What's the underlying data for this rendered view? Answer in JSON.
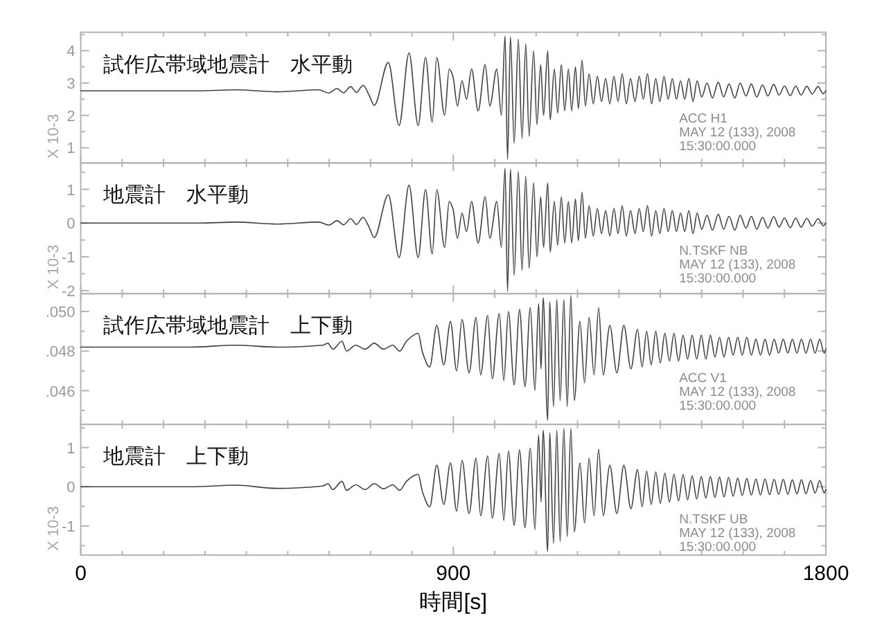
{
  "chart_data": [
    {
      "type": "line",
      "title": "試作広帯域地震計　水平動",
      "ylabel": "X 10-3",
      "annotations": [
        "ACC H1",
        "MAY 12 (133), 2008",
        "15:30:00.000"
      ],
      "color": "#404040",
      "xlim": [
        0,
        1800
      ],
      "xticks": [
        0,
        {
          "value": 100,
          "label": null
        },
        {
          "value": 200,
          "label": null
        },
        {
          "value": 300,
          "label": null
        },
        {
          "value": 400,
          "label": null
        },
        {
          "value": 500,
          "label": null
        },
        {
          "value": 600,
          "label": null
        },
        {
          "value": 700,
          "label": null
        },
        {
          "value": 800,
          "label": null
        },
        900,
        {
          "value": 1000,
          "label": null
        },
        {
          "value": 1100,
          "label": null
        },
        {
          "value": 1200,
          "label": null
        },
        {
          "value": 1300,
          "label": null
        },
        {
          "value": 1400,
          "label": null
        },
        {
          "value": 1500,
          "label": null
        },
        {
          "value": 1600,
          "label": null
        },
        {
          "value": 1700,
          "label": null
        },
        1800
      ],
      "ylim": [
        0.53,
        4.57
      ],
      "yticks": [
        1,
        {
          "value": 1.5,
          "label": null
        },
        2,
        {
          "value": 2.5,
          "label": null
        },
        3,
        {
          "value": 3.5,
          "label": null
        },
        4,
        {
          "value": 4.5,
          "label": null
        }
      ],
      "tick_labels": "y",
      "x": [
        0,
        284,
        374,
        475,
        575,
        599,
        619,
        635,
        652,
        666,
        682,
        696,
        709,
        743,
        769,
        793,
        815,
        833,
        849,
        860,
        879,
        890,
        899,
        910,
        921,
        932,
        944,
        960,
        977,
        988,
        1005,
        1016,
        1025,
        1031,
        1038,
        1047,
        1057,
        1066,
        1075,
        1083,
        1094,
        1102,
        1111,
        1118,
        1128,
        1134,
        1144,
        1152,
        1161,
        1169,
        1178,
        1186,
        1195,
        1202,
        1211,
        1219,
        1228,
        1238,
        1248,
        1258,
        1268,
        1278,
        1288,
        1298,
        1308,
        1318,
        1328,
        1339,
        1349,
        1359,
        1369,
        1379,
        1389,
        1399,
        1409,
        1419,
        1429,
        1439,
        1449,
        1459,
        1469,
        1479,
        1489,
        1500,
        1513,
        1526,
        1540,
        1553,
        1566,
        1580,
        1593,
        1607,
        1620,
        1633,
        1647,
        1660,
        1674,
        1687,
        1700,
        1714,
        1727,
        1740,
        1754,
        1767,
        1781,
        1794,
        1800
      ],
      "values": [
        2.76,
        2.76,
        2.79,
        2.73,
        2.79,
        2.69,
        2.83,
        2.7,
        2.89,
        2.71,
        2.93,
        2.64,
        2.31,
        3.64,
        1.69,
        3.93,
        1.69,
        3.79,
        1.79,
        3.79,
        2.0,
        3.43,
        3.21,
        2.29,
        3.07,
        2.5,
        3.43,
        2.14,
        3.57,
        2.29,
        3.43,
        2.0,
        4.46,
        0.64,
        4.43,
        1.14,
        4.36,
        1.29,
        4.21,
        1.36,
        4.0,
        1.71,
        3.57,
        2.0,
        4.0,
        1.86,
        3.43,
        2.07,
        3.57,
        2.14,
        3.43,
        2.14,
        3.5,
        2.21,
        3.71,
        2.29,
        3.29,
        2.36,
        3.21,
        2.43,
        3.14,
        2.36,
        3.21,
        2.43,
        3.29,
        2.36,
        3.14,
        2.43,
        3.21,
        2.5,
        3.29,
        2.36,
        3.14,
        2.43,
        3.21,
        2.5,
        3.14,
        2.5,
        3.07,
        2.5,
        3.14,
        2.43,
        3.07,
        2.57,
        3.0,
        2.54,
        3.03,
        2.57,
        2.97,
        2.54,
        3.0,
        2.6,
        2.97,
        2.57,
        2.94,
        2.6,
        2.96,
        2.63,
        2.91,
        2.61,
        2.91,
        2.63,
        2.9,
        2.66,
        2.89,
        2.67,
        2.76
      ]
    },
    {
      "type": "line",
      "title": "地震計　水平動",
      "ylabel": "X 10-3",
      "annotations": [
        "N.TSKF NB",
        "MAY 12 (133), 2008",
        "15:30:00.000"
      ],
      "color": "#404040",
      "xlim": [
        0,
        1800
      ],
      "xticks": [
        0,
        {
          "value": 100,
          "label": null
        },
        {
          "value": 200,
          "label": null
        },
        {
          "value": 300,
          "label": null
        },
        {
          "value": 400,
          "label": null
        },
        {
          "value": 500,
          "label": null
        },
        {
          "value": 600,
          "label": null
        },
        {
          "value": 700,
          "label": null
        },
        {
          "value": 800,
          "label": null
        },
        900,
        {
          "value": 1000,
          "label": null
        },
        {
          "value": 1100,
          "label": null
        },
        {
          "value": 1200,
          "label": null
        },
        {
          "value": 1300,
          "label": null
        },
        {
          "value": 1400,
          "label": null
        },
        {
          "value": 1500,
          "label": null
        },
        {
          "value": 1600,
          "label": null
        },
        {
          "value": 1700,
          "label": null
        },
        1800
      ],
      "ylim": [
        -2.09,
        1.78
      ],
      "yticks": [
        -2,
        {
          "value": -1.5,
          "label": null
        },
        -1,
        {
          "value": -0.5,
          "label": null
        },
        0,
        {
          "value": 0.5,
          "label": null
        },
        1,
        {
          "value": 1.5,
          "label": null
        }
      ],
      "tick_labels": "y",
      "x": [
        0,
        284,
        374,
        475,
        575,
        599,
        619,
        635,
        652,
        666,
        682,
        696,
        709,
        743,
        769,
        793,
        815,
        833,
        849,
        860,
        879,
        890,
        899,
        910,
        921,
        932,
        944,
        960,
        977,
        988,
        1005,
        1016,
        1025,
        1031,
        1038,
        1047,
        1057,
        1066,
        1075,
        1083,
        1094,
        1102,
        1111,
        1118,
        1128,
        1134,
        1144,
        1152,
        1161,
        1169,
        1178,
        1186,
        1195,
        1202,
        1211,
        1219,
        1228,
        1238,
        1248,
        1258,
        1268,
        1278,
        1288,
        1298,
        1308,
        1318,
        1328,
        1339,
        1349,
        1359,
        1369,
        1379,
        1389,
        1399,
        1409,
        1419,
        1429,
        1439,
        1449,
        1459,
        1469,
        1479,
        1489,
        1500,
        1513,
        1526,
        1540,
        1553,
        1566,
        1580,
        1593,
        1607,
        1620,
        1633,
        1647,
        1660,
        1674,
        1687,
        1700,
        1714,
        1727,
        1740,
        1754,
        1767,
        1781,
        1794,
        1800
      ],
      "values": [
        0.0,
        0.0,
        0.03,
        -0.03,
        0.03,
        -0.06,
        0.07,
        -0.05,
        0.13,
        -0.04,
        0.17,
        -0.11,
        -0.43,
        0.84,
        -1.02,
        1.12,
        -1.02,
        0.99,
        -0.92,
        0.99,
        -0.72,
        0.64,
        0.43,
        -0.45,
        0.3,
        -0.25,
        0.64,
        -0.59,
        0.78,
        -0.45,
        0.64,
        -0.72,
        1.63,
        -2.02,
        1.6,
        -1.55,
        1.53,
        -1.4,
        1.39,
        -1.34,
        1.19,
        -1.0,
        0.78,
        -0.72,
        1.19,
        -0.86,
        0.64,
        -0.66,
        0.78,
        -0.59,
        0.64,
        -0.59,
        0.71,
        -0.52,
        0.91,
        -0.45,
        0.51,
        -0.38,
        0.43,
        -0.31,
        0.37,
        -0.38,
        0.43,
        -0.31,
        0.51,
        -0.38,
        0.37,
        -0.31,
        0.43,
        -0.25,
        0.51,
        -0.38,
        0.37,
        -0.31,
        0.43,
        -0.25,
        0.37,
        -0.25,
        0.3,
        -0.25,
        0.37,
        -0.31,
        0.3,
        -0.18,
        0.23,
        -0.21,
        0.26,
        -0.18,
        0.2,
        -0.21,
        0.23,
        -0.15,
        0.2,
        -0.18,
        0.17,
        -0.15,
        0.19,
        -0.12,
        0.15,
        -0.14,
        0.15,
        -0.12,
        0.14,
        -0.09,
        0.13,
        -0.08,
        0.0
      ]
    },
    {
      "type": "line",
      "title": "試作広帯域地震計　上下動",
      "annotations": [
        "ACC V1",
        "MAY 12 (133), 2008",
        "15:30:00.000"
      ],
      "color": "#404040",
      "xlim": [
        0,
        1800
      ],
      "xticks": [
        0,
        {
          "value": 100,
          "label": null
        },
        {
          "value": 200,
          "label": null
        },
        {
          "value": 300,
          "label": null
        },
        {
          "value": 400,
          "label": null
        },
        {
          "value": 500,
          "label": null
        },
        {
          "value": 600,
          "label": null
        },
        {
          "value": 700,
          "label": null
        },
        {
          "value": 800,
          "label": null
        },
        900,
        {
          "value": 1000,
          "label": null
        },
        {
          "value": 1100,
          "label": null
        },
        {
          "value": 1200,
          "label": null
        },
        {
          "value": 1300,
          "label": null
        },
        {
          "value": 1400,
          "label": null
        },
        {
          "value": 1500,
          "label": null
        },
        {
          "value": 1600,
          "label": null
        },
        {
          "value": 1700,
          "label": null
        },
        1800
      ],
      "ylim": [
        0.0443,
        0.0509
      ],
      "yticks": [
        {
          "value": 0.045,
          "label": null
        },
        {
          "value": 0.046,
          "label": ".046"
        },
        {
          "value": 0.047,
          "label": null
        },
        {
          "value": 0.048,
          "label": ".048"
        },
        {
          "value": 0.049,
          "label": null
        },
        {
          "value": 0.05,
          "label": ".050"
        }
      ],
      "tick_labels": "y",
      "x": [
        0,
        263,
        374,
        475,
        585,
        597,
        609,
        631,
        642,
        664,
        687,
        709,
        731,
        754,
        770,
        787,
        804,
        815,
        826,
        843,
        860,
        877,
        893,
        908,
        921,
        938,
        955,
        966,
        983,
        994,
        1011,
        1022,
        1033,
        1047,
        1060,
        1073,
        1086,
        1097,
        1106,
        1112,
        1117,
        1128,
        1133,
        1142,
        1150,
        1158,
        1167,
        1175,
        1184,
        1192,
        1206,
        1217,
        1228,
        1240,
        1251,
        1262,
        1278,
        1295,
        1312,
        1329,
        1345,
        1356,
        1367,
        1378,
        1389,
        1400,
        1411,
        1422,
        1433,
        1444,
        1455,
        1466,
        1477,
        1488,
        1499,
        1510,
        1521,
        1532,
        1543,
        1554,
        1565,
        1576,
        1587,
        1598,
        1609,
        1620,
        1631,
        1642,
        1653,
        1664,
        1675,
        1686,
        1697,
        1708,
        1719,
        1730,
        1741,
        1752,
        1763,
        1774,
        1785,
        1796,
        1800
      ],
      "values": [
        0.0482,
        0.0482,
        0.0483,
        0.0482,
        0.0483,
        0.0484,
        0.0481,
        0.0485,
        0.048,
        0.0483,
        0.0481,
        0.0484,
        0.0481,
        0.0483,
        0.048,
        0.0485,
        0.0488,
        0.0489,
        0.0479,
        0.0472,
        0.0493,
        0.0473,
        0.0495,
        0.047,
        0.0496,
        0.0469,
        0.0497,
        0.0468,
        0.0498,
        0.0466,
        0.0499,
        0.0465,
        0.05,
        0.0463,
        0.0501,
        0.0462,
        0.0502,
        0.046,
        0.0504,
        0.0471,
        0.0507,
        0.0445,
        0.0505,
        0.0452,
        0.0506,
        0.0455,
        0.0506,
        0.0452,
        0.0508,
        0.0455,
        0.0495,
        0.0464,
        0.0497,
        0.0468,
        0.0502,
        0.0468,
        0.0493,
        0.0469,
        0.0493,
        0.0471,
        0.0491,
        0.0472,
        0.049,
        0.0473,
        0.049,
        0.0474,
        0.0489,
        0.0475,
        0.0489,
        0.0475,
        0.0488,
        0.0476,
        0.0488,
        0.0476,
        0.0488,
        0.0476,
        0.0488,
        0.0477,
        0.0487,
        0.0477,
        0.0487,
        0.0478,
        0.0487,
        0.0478,
        0.0487,
        0.0478,
        0.0486,
        0.0478,
        0.0486,
        0.0478,
        0.0486,
        0.0479,
        0.0486,
        0.0479,
        0.0486,
        0.0479,
        0.0486,
        0.0479,
        0.0486,
        0.0479,
        0.0486,
        0.0479,
        0.0481
      ]
    },
    {
      "type": "line",
      "title": "地震計　上下動",
      "ylabel": "X 10-3",
      "xlabel": "時間[s]",
      "annotations": [
        "N.TSKF UB",
        "MAY 12 (133), 2008",
        "15:30:00.000"
      ],
      "color": "#404040",
      "xlim": [
        0,
        1800
      ],
      "xticks": [
        0,
        {
          "value": 100,
          "label": null
        },
        {
          "value": 200,
          "label": null
        },
        {
          "value": 300,
          "label": null
        },
        {
          "value": 400,
          "label": null
        },
        {
          "value": 500,
          "label": null
        },
        {
          "value": 600,
          "label": null
        },
        {
          "value": 700,
          "label": null
        },
        {
          "value": 800,
          "label": null
        },
        900,
        {
          "value": 1000,
          "label": null
        },
        {
          "value": 1100,
          "label": null
        },
        {
          "value": 1200,
          "label": null
        },
        {
          "value": 1300,
          "label": null
        },
        {
          "value": 1400,
          "label": null
        },
        {
          "value": 1500,
          "label": null
        },
        {
          "value": 1600,
          "label": null
        },
        {
          "value": 1700,
          "label": null
        },
        1800
      ],
      "ylim": [
        -1.74,
        1.59
      ],
      "yticks": [
        {
          "value": -1.5,
          "label": null
        },
        -1,
        {
          "value": -0.5,
          "label": null
        },
        0,
        {
          "value": 0.5,
          "label": null
        },
        1,
        {
          "value": 1.5,
          "label": null
        }
      ],
      "x": [
        0,
        263,
        374,
        475,
        585,
        597,
        609,
        631,
        642,
        664,
        687,
        709,
        731,
        754,
        770,
        787,
        804,
        815,
        826,
        843,
        860,
        877,
        893,
        908,
        921,
        938,
        955,
        966,
        983,
        994,
        1011,
        1022,
        1033,
        1047,
        1060,
        1073,
        1086,
        1097,
        1106,
        1112,
        1117,
        1128,
        1133,
        1142,
        1150,
        1158,
        1167,
        1175,
        1184,
        1192,
        1206,
        1217,
        1228,
        1240,
        1251,
        1262,
        1278,
        1295,
        1312,
        1329,
        1345,
        1356,
        1367,
        1378,
        1389,
        1400,
        1411,
        1422,
        1433,
        1444,
        1455,
        1466,
        1477,
        1488,
        1499,
        1510,
        1521,
        1532,
        1543,
        1554,
        1565,
        1576,
        1587,
        1598,
        1609,
        1620,
        1631,
        1642,
        1653,
        1664,
        1675,
        1686,
        1697,
        1708,
        1719,
        1730,
        1741,
        1752,
        1763,
        1774,
        1785,
        1796,
        1800
      ],
      "values": [
        0.0,
        0.0,
        0.04,
        -0.04,
        0.02,
        0.08,
        -0.07,
        0.14,
        -0.09,
        0.05,
        -0.07,
        0.08,
        -0.05,
        0.05,
        -0.09,
        0.14,
        0.28,
        0.32,
        -0.15,
        -0.51,
        0.55,
        -0.45,
        0.61,
        -0.62,
        0.67,
        -0.68,
        0.73,
        -0.74,
        0.79,
        -0.8,
        0.85,
        -0.86,
        0.91,
        -0.98,
        0.94,
        -1.04,
        0.99,
        -1.09,
        1.32,
        -0.39,
        1.44,
        -1.65,
        1.38,
        -1.45,
        1.44,
        -1.39,
        1.49,
        -1.27,
        1.49,
        -1.15,
        0.61,
        -0.92,
        0.73,
        -0.74,
        0.96,
        -0.74,
        0.55,
        -0.68,
        0.55,
        -0.56,
        0.44,
        -0.51,
        0.4,
        -0.45,
        0.38,
        -0.42,
        0.35,
        -0.39,
        0.32,
        -0.36,
        0.31,
        -0.33,
        0.28,
        -0.31,
        0.26,
        -0.29,
        0.26,
        -0.27,
        0.25,
        -0.26,
        0.24,
        -0.24,
        0.22,
        -0.22,
        0.21,
        -0.21,
        0.2,
        -0.21,
        0.2,
        -0.2,
        0.19,
        -0.19,
        0.19,
        -0.19,
        0.18,
        -0.18,
        0.18,
        -0.18,
        0.16,
        -0.16,
        0.16,
        -0.16,
        -0.07
      ]
    }
  ]
}
